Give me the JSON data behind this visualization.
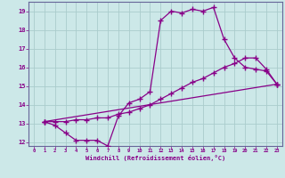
{
  "xlabel": "Windchill (Refroidissement éolien,°C)",
  "xlim": [
    -0.5,
    23.5
  ],
  "ylim": [
    11.8,
    19.5
  ],
  "yticks": [
    12,
    13,
    14,
    15,
    16,
    17,
    18,
    19
  ],
  "xticks": [
    0,
    1,
    2,
    3,
    4,
    5,
    6,
    7,
    8,
    9,
    10,
    11,
    12,
    13,
    14,
    15,
    16,
    17,
    18,
    19,
    20,
    21,
    22,
    23
  ],
  "bg_color": "#cce8e8",
  "grid_color": "#aacccc",
  "line_color": "#880088",
  "spine_color": "#666699",
  "lines": [
    {
      "x": [
        1,
        2,
        3,
        4,
        5,
        6,
        7,
        8,
        9,
        10,
        11,
        12,
        13,
        14,
        15,
        16,
        17,
        18,
        19,
        20,
        21,
        22,
        23
      ],
      "y": [
        13.1,
        12.9,
        12.5,
        12.1,
        12.1,
        12.1,
        11.8,
        13.4,
        14.1,
        14.3,
        14.7,
        18.5,
        19.0,
        18.9,
        19.1,
        19.0,
        19.2,
        17.5,
        16.5,
        16.0,
        15.9,
        15.8,
        15.1
      ]
    },
    {
      "x": [
        1,
        2,
        3,
        4,
        5,
        6,
        7,
        8,
        9,
        10,
        11,
        12,
        13,
        14,
        15,
        16,
        17,
        18,
        19,
        20,
        21,
        22,
        23
      ],
      "y": [
        13.1,
        13.1,
        13.1,
        13.2,
        13.2,
        13.3,
        13.3,
        13.5,
        13.6,
        13.8,
        14.0,
        14.3,
        14.6,
        14.9,
        15.2,
        15.4,
        15.7,
        16.0,
        16.2,
        16.5,
        16.5,
        15.9,
        15.1
      ]
    },
    {
      "x": [
        1,
        23
      ],
      "y": [
        13.1,
        15.1
      ]
    }
  ]
}
